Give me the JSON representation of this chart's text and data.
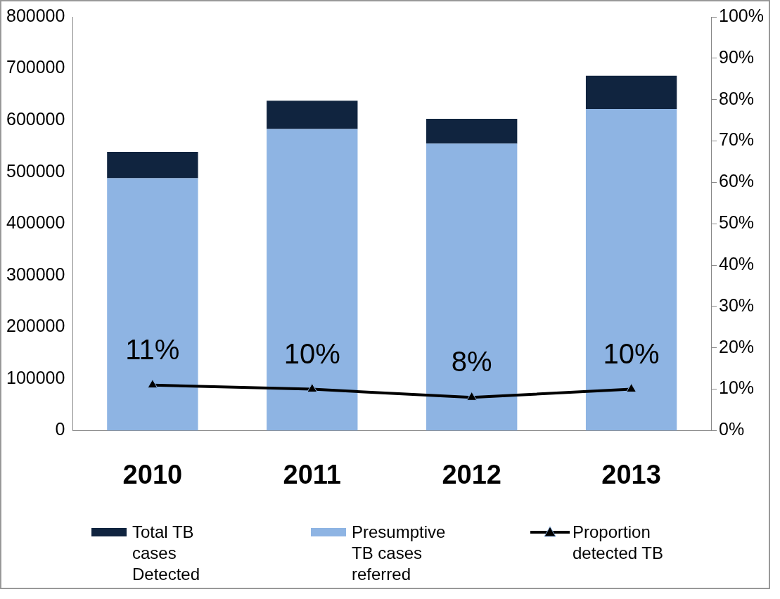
{
  "chart_data": {
    "type": "bar",
    "stacked": true,
    "categories": [
      "2010",
      "2011",
      "2012",
      "2013"
    ],
    "series": [
      {
        "name": "Presumptive TB cases referred",
        "color": "#8eb4e3",
        "values": [
          488000,
          583000,
          555000,
          622000
        ]
      },
      {
        "name": "Total TB cases Detected",
        "color": "#10243f",
        "values": [
          51000,
          55000,
          48000,
          64000
        ]
      },
      {
        "name": "Proportion detected TB",
        "type": "line",
        "axis": "y2",
        "color": "#000000",
        "marker": "triangle",
        "values": [
          11,
          10,
          8,
          10
        ],
        "value_labels": [
          "11%",
          "10%",
          "8%",
          "10%"
        ]
      }
    ],
    "ylim": [
      0,
      800000
    ],
    "yticks": [
      0,
      100000,
      200000,
      300000,
      400000,
      500000,
      600000,
      700000,
      800000
    ],
    "y2lim": [
      0,
      100
    ],
    "y2ticks": [
      {
        "value": 0,
        "label": "0%"
      },
      {
        "value": 10,
        "label": "10%"
      },
      {
        "value": 20,
        "label": "20%"
      },
      {
        "value": 30,
        "label": "30%"
      },
      {
        "value": 40,
        "label": "40%"
      },
      {
        "value": 50,
        "label": "50%"
      },
      {
        "value": 60,
        "label": "60%"
      },
      {
        "value": 70,
        "label": "70%"
      },
      {
        "value": 80,
        "label": "80%"
      },
      {
        "value": 90,
        "label": "90%"
      },
      {
        "value": 100,
        "label": "100%"
      }
    ],
    "grid": false,
    "legend": "bottom"
  }
}
